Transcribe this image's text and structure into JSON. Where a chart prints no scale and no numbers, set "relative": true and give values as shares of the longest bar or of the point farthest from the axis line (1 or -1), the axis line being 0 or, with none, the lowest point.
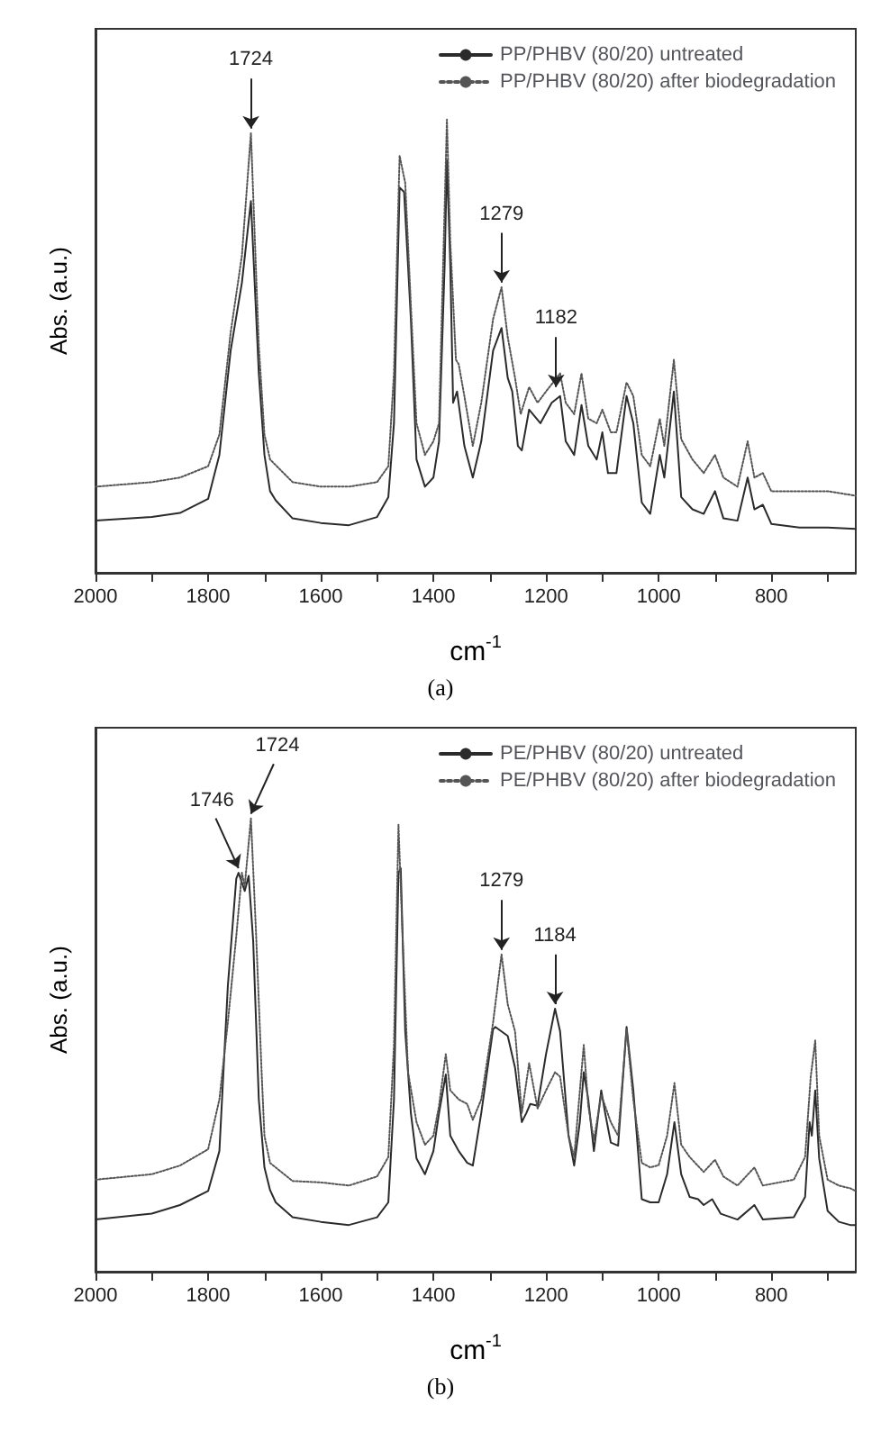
{
  "chart_data": [
    {
      "type": "line",
      "relative": true,
      "xlabel": "cm$^{-1}$",
      "ylabel": "Abs. (a.u.)",
      "xlim": [
        2000,
        650
      ],
      "xticks": [
        2000,
        {
          "value": 1900,
          "label": null
        },
        1800,
        {
          "value": 1700,
          "label": null
        },
        1600,
        {
          "value": 1500,
          "label": null
        },
        1400,
        {
          "value": 1300,
          "label": null
        },
        1200,
        {
          "value": 1100,
          "label": null
        },
        1000,
        {
          "value": 900,
          "label": null
        },
        800,
        {
          "value": 700,
          "label": null
        }
      ],
      "grid": false,
      "legend": "top right",
      "marker": "none",
      "annotations": [
        {
          "text": "1724",
          "x": 1724,
          "y": 0.97
        },
        {
          "text": "1279",
          "x": 1279,
          "y": 0.63
        },
        {
          "text": "1182",
          "x": 1182,
          "y": 0.4
        },
        "(a)"
      ],
      "series": [
        {
          "name": "PP/PHBV (80/20) untreated",
          "color": "#2b2b2b",
          "line_style": "solid",
          "x": [
            2000,
            1900,
            1850,
            1800,
            1780,
            1760,
            1740,
            1724,
            1710,
            1700,
            1690,
            1680,
            1650,
            1600,
            1550,
            1500,
            1480,
            1470,
            1460,
            1452,
            1440,
            1430,
            1415,
            1400,
            1390,
            1380,
            1376,
            1370,
            1365,
            1358,
            1345,
            1330,
            1315,
            1294,
            1279,
            1268,
            1260,
            1250,
            1243,
            1230,
            1210,
            1190,
            1175,
            1165,
            1150,
            1137,
            1125,
            1110,
            1100,
            1090,
            1075,
            1057,
            1045,
            1030,
            1015,
            998,
            990,
            973,
            960,
            940,
            920,
            900,
            885,
            860,
            842,
            830,
            815,
            800,
            750,
            700,
            650
          ],
          "values": [
            0.115,
            0.123,
            0.132,
            0.163,
            0.26,
            0.49,
            0.64,
            0.82,
            0.44,
            0.26,
            0.18,
            0.16,
            0.12,
            0.11,
            0.105,
            0.123,
            0.167,
            0.33,
            0.85,
            0.84,
            0.56,
            0.25,
            0.19,
            0.21,
            0.29,
            0.68,
            0.91,
            0.68,
            0.375,
            0.4,
            0.28,
            0.21,
            0.29,
            0.49,
            0.54,
            0.43,
            0.4,
            0.28,
            0.27,
            0.36,
            0.33,
            0.375,
            0.39,
            0.29,
            0.26,
            0.37,
            0.28,
            0.25,
            0.31,
            0.22,
            0.22,
            0.39,
            0.33,
            0.155,
            0.13,
            0.26,
            0.21,
            0.4,
            0.167,
            0.14,
            0.13,
            0.18,
            0.12,
            0.115,
            0.21,
            0.14,
            0.15,
            0.108,
            0.1,
            0.1,
            0.097
          ]
        },
        {
          "name": "PP/PHBV (80/20) after biodegradation",
          "color": "#555555",
          "line_style": "dotted",
          "x": [
            2000,
            1900,
            1850,
            1800,
            1780,
            1760,
            1740,
            1724,
            1710,
            1700,
            1690,
            1650,
            1600,
            1550,
            1500,
            1480,
            1470,
            1460,
            1450,
            1440,
            1430,
            1415,
            1400,
            1390,
            1376,
            1370,
            1360,
            1355,
            1345,
            1330,
            1315,
            1294,
            1279,
            1268,
            1255,
            1245,
            1230,
            1215,
            1200,
            1175,
            1165,
            1150,
            1137,
            1125,
            1110,
            1100,
            1085,
            1075,
            1057,
            1045,
            1030,
            1015,
            998,
            990,
            973,
            960,
            940,
            920,
            900,
            885,
            860,
            842,
            830,
            815,
            800,
            750,
            700,
            650
          ],
          "values": [
            0.19,
            0.2,
            0.21,
            0.235,
            0.305,
            0.53,
            0.7,
            0.97,
            0.5,
            0.305,
            0.25,
            0.2,
            0.19,
            0.19,
            0.2,
            0.235,
            0.44,
            0.92,
            0.86,
            0.59,
            0.33,
            0.26,
            0.29,
            0.33,
            1.0,
            0.73,
            0.47,
            0.46,
            0.39,
            0.28,
            0.375,
            0.56,
            0.63,
            0.52,
            0.43,
            0.35,
            0.41,
            0.375,
            0.4,
            0.44,
            0.375,
            0.35,
            0.44,
            0.34,
            0.33,
            0.36,
            0.31,
            0.31,
            0.42,
            0.39,
            0.26,
            0.235,
            0.34,
            0.28,
            0.47,
            0.295,
            0.25,
            0.22,
            0.26,
            0.21,
            0.19,
            0.29,
            0.21,
            0.22,
            0.18,
            0.18,
            0.18,
            0.17
          ]
        }
      ]
    },
    {
      "type": "line",
      "relative": true,
      "xlabel": "cm$^{-1}$",
      "ylabel": "Abs. (a.u.)",
      "xlim": [
        2000,
        650
      ],
      "xticks": [
        2000,
        {
          "value": 1900,
          "label": null
        },
        1800,
        {
          "value": 1700,
          "label": null
        },
        1600,
        {
          "value": 1500,
          "label": null
        },
        1400,
        {
          "value": 1300,
          "label": null
        },
        1200,
        {
          "value": 1100,
          "label": null
        },
        1000,
        {
          "value": 900,
          "label": null
        },
        800,
        {
          "value": 700,
          "label": null
        }
      ],
      "grid": false,
      "legend": "top right",
      "marker": "none",
      "annotations": [
        {
          "text": "1746",
          "x": 1746,
          "y": 0.88
        },
        {
          "text": "1724",
          "x": 1724,
          "y": 1.0
        },
        {
          "text": "1279",
          "x": 1279,
          "y": 0.7
        },
        {
          "text": "1184",
          "x": 1184,
          "y": 0.58
        },
        "(b)"
      ],
      "series": [
        {
          "name": "PE/PHBV (80/20) untreated",
          "color": "#2b2b2b",
          "line_style": "solid",
          "x": [
            2000,
            1900,
            1850,
            1800,
            1780,
            1765,
            1750,
            1746,
            1735,
            1728,
            1720,
            1710,
            1700,
            1690,
            1680,
            1650,
            1600,
            1550,
            1500,
            1480,
            1470,
            1462,
            1458,
            1450,
            1440,
            1430,
            1415,
            1400,
            1390,
            1378,
            1370,
            1355,
            1340,
            1330,
            1315,
            1294,
            1290,
            1279,
            1268,
            1255,
            1243,
            1235,
            1228,
            1215,
            1200,
            1184,
            1175,
            1160,
            1150,
            1140,
            1133,
            1125,
            1115,
            1102,
            1095,
            1085,
            1072,
            1057,
            1045,
            1030,
            1015,
            1000,
            985,
            972,
            960,
            945,
            930,
            920,
            905,
            890,
            860,
            830,
            815,
            760,
            740,
            732,
            728,
            722,
            715,
            700,
            680,
            660,
            650
          ],
          "values": [
            0.115,
            0.128,
            0.147,
            0.178,
            0.266,
            0.63,
            0.867,
            0.88,
            0.84,
            0.873,
            0.73,
            0.38,
            0.23,
            0.18,
            0.153,
            0.12,
            0.11,
            0.103,
            0.12,
            0.153,
            0.38,
            0.88,
            0.89,
            0.53,
            0.35,
            0.25,
            0.215,
            0.266,
            0.35,
            0.435,
            0.3,
            0.266,
            0.24,
            0.234,
            0.35,
            0.535,
            0.54,
            0.53,
            0.52,
            0.45,
            0.33,
            0.35,
            0.37,
            0.366,
            0.48,
            0.58,
            0.53,
            0.3,
            0.234,
            0.33,
            0.44,
            0.38,
            0.266,
            0.4,
            0.35,
            0.285,
            0.278,
            0.54,
            0.4,
            0.16,
            0.153,
            0.153,
            0.215,
            0.33,
            0.215,
            0.165,
            0.16,
            0.147,
            0.16,
            0.128,
            0.115,
            0.147,
            0.115,
            0.12,
            0.165,
            0.33,
            0.3,
            0.4,
            0.25,
            0.134,
            0.11,
            0.103,
            0.103
          ]
        },
        {
          "name": "PE/PHBV (80/20) after biodegradation",
          "color": "#555555",
          "line_style": "dotted",
          "x": [
            2000,
            1900,
            1850,
            1800,
            1780,
            1765,
            1750,
            1740,
            1735,
            1724,
            1715,
            1705,
            1700,
            1690,
            1650,
            1600,
            1550,
            1500,
            1480,
            1470,
            1462,
            1455,
            1445,
            1430,
            1415,
            1400,
            1390,
            1378,
            1370,
            1355,
            1340,
            1330,
            1315,
            1294,
            1279,
            1268,
            1255,
            1243,
            1230,
            1215,
            1200,
            1184,
            1175,
            1160,
            1150,
            1133,
            1125,
            1115,
            1102,
            1085,
            1072,
            1057,
            1045,
            1030,
            1015,
            1000,
            985,
            972,
            960,
            945,
            920,
            900,
            885,
            860,
            830,
            815,
            760,
            740,
            730,
            722,
            715,
            700,
            680,
            660,
            650
          ],
          "values": [
            0.203,
            0.215,
            0.234,
            0.27,
            0.38,
            0.55,
            0.74,
            0.88,
            0.85,
            1.0,
            0.75,
            0.44,
            0.3,
            0.24,
            0.2,
            0.197,
            0.19,
            0.21,
            0.253,
            0.5,
            0.986,
            0.75,
            0.44,
            0.33,
            0.28,
            0.3,
            0.366,
            0.48,
            0.4,
            0.38,
            0.37,
            0.335,
            0.38,
            0.55,
            0.7,
            0.59,
            0.53,
            0.35,
            0.46,
            0.36,
            0.4,
            0.44,
            0.43,
            0.3,
            0.253,
            0.5,
            0.366,
            0.29,
            0.39,
            0.33,
            0.3,
            0.535,
            0.38,
            0.24,
            0.23,
            0.235,
            0.3,
            0.416,
            0.28,
            0.253,
            0.22,
            0.247,
            0.21,
            0.19,
            0.23,
            0.19,
            0.203,
            0.253,
            0.43,
            0.51,
            0.3,
            0.203,
            0.19,
            0.184,
            0.178
          ]
        }
      ]
    }
  ]
}
